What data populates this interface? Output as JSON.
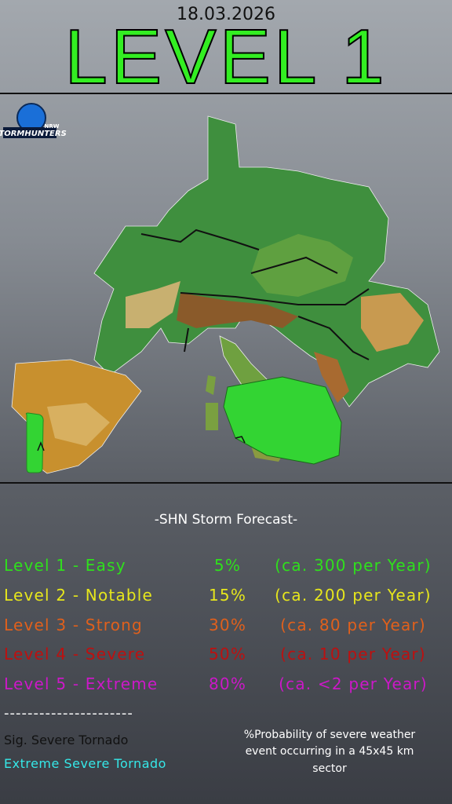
{
  "header": {
    "date": "18.03.2026",
    "title": "LEVEL 1"
  },
  "logo": {
    "name": "STORMHUNTERS",
    "region": "NRW"
  },
  "forecast": {
    "title": "-SHN Storm Forecast-",
    "levels": [
      {
        "label": "Level 1 - Easy",
        "probability": "5%",
        "frequency": "(ca. 300 per Year)",
        "color": "#2fe01c"
      },
      {
        "label": "Level 2 - Notable",
        "probability": "15%",
        "frequency": "(ca. 200 per Year)",
        "color": "#e6e61c"
      },
      {
        "label": "Level 3 - Strong",
        "probability": "30%",
        "frequency": "(ca. 80 per Year)",
        "color": "#e0601c"
      },
      {
        "label": "Level 4 - Severe",
        "probability": "50%",
        "frequency": "(ca. 10 per Year)",
        "color": "#bd1010"
      },
      {
        "label": "Level 5 - Extreme",
        "probability": "80%",
        "frequency": "(ca.  <2 per Year)",
        "color": "#cc18c8"
      }
    ]
  },
  "separator": "----------------------",
  "legend": [
    "Sig. Severe Tornado",
    "Extreme Severe Tornado"
  ],
  "note": [
    "%Probability of severe weather",
    "event occurring in a 45x45 km",
    "sector"
  ]
}
